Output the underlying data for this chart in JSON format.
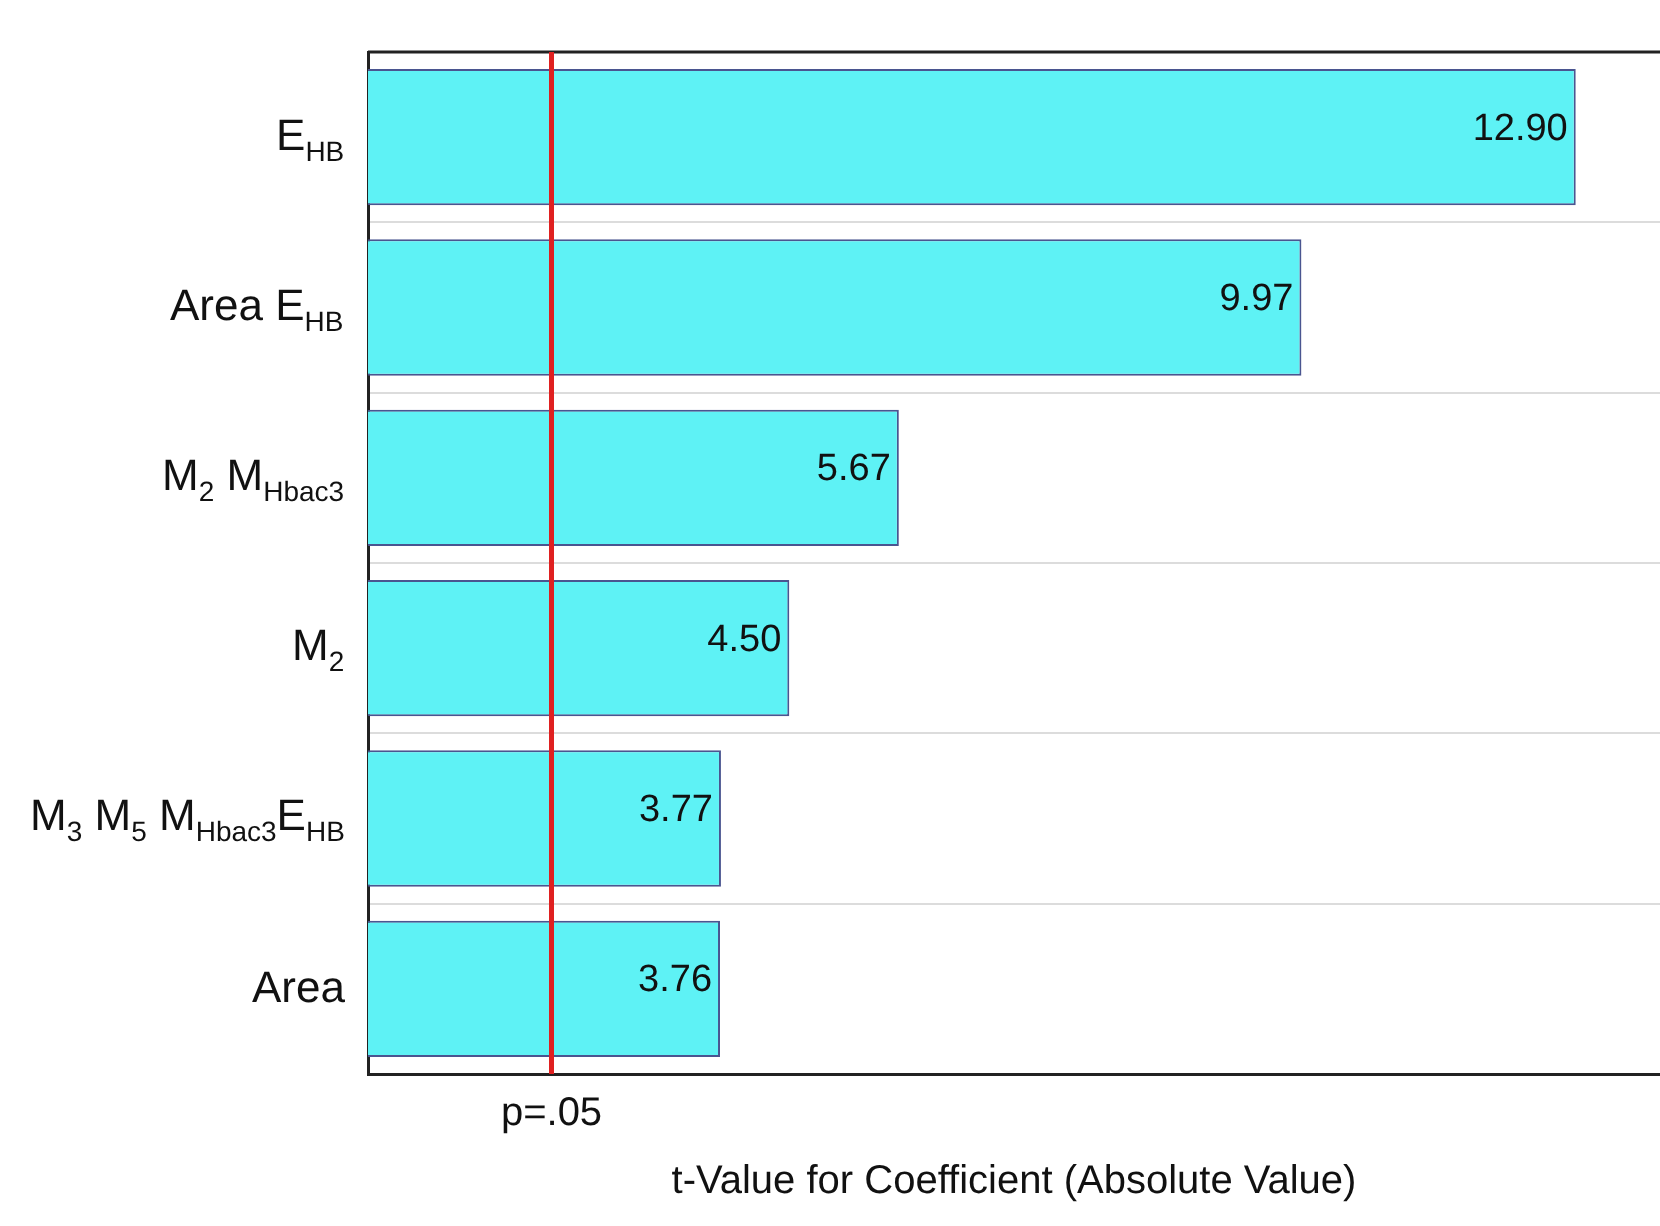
{
  "chart_data": {
    "type": "bar",
    "orientation": "horizontal",
    "categories": [
      "E$_{HB}$",
      "Area E$_{HB}$",
      "M$_{2}$ M$_{Hbac3}$",
      "M$_{2}$",
      "M$_{3}$ M$_{5}$ M$_{Hbac3}$E$_{HB}$",
      "Area"
    ],
    "values": [
      12.9,
      9.97,
      5.67,
      4.5,
      3.77,
      3.76
    ],
    "color": "#5ef2f5",
    "value_labels": [
      "12.90",
      "9.97",
      "5.67",
      "4.50",
      "3.77",
      "3.76"
    ],
    "xlim": [
      0,
      13.8
    ],
    "xlabel": "t-Value for Coefficient (Absolute Value)",
    "ref_lines": [
      {
        "axis": "x",
        "value": 1.96,
        "label": "p=.05",
        "color": "#e02020",
        "line_style": "solid"
      }
    ],
    "grid": "y",
    "tick_labels": "y",
    "legend": false
  }
}
